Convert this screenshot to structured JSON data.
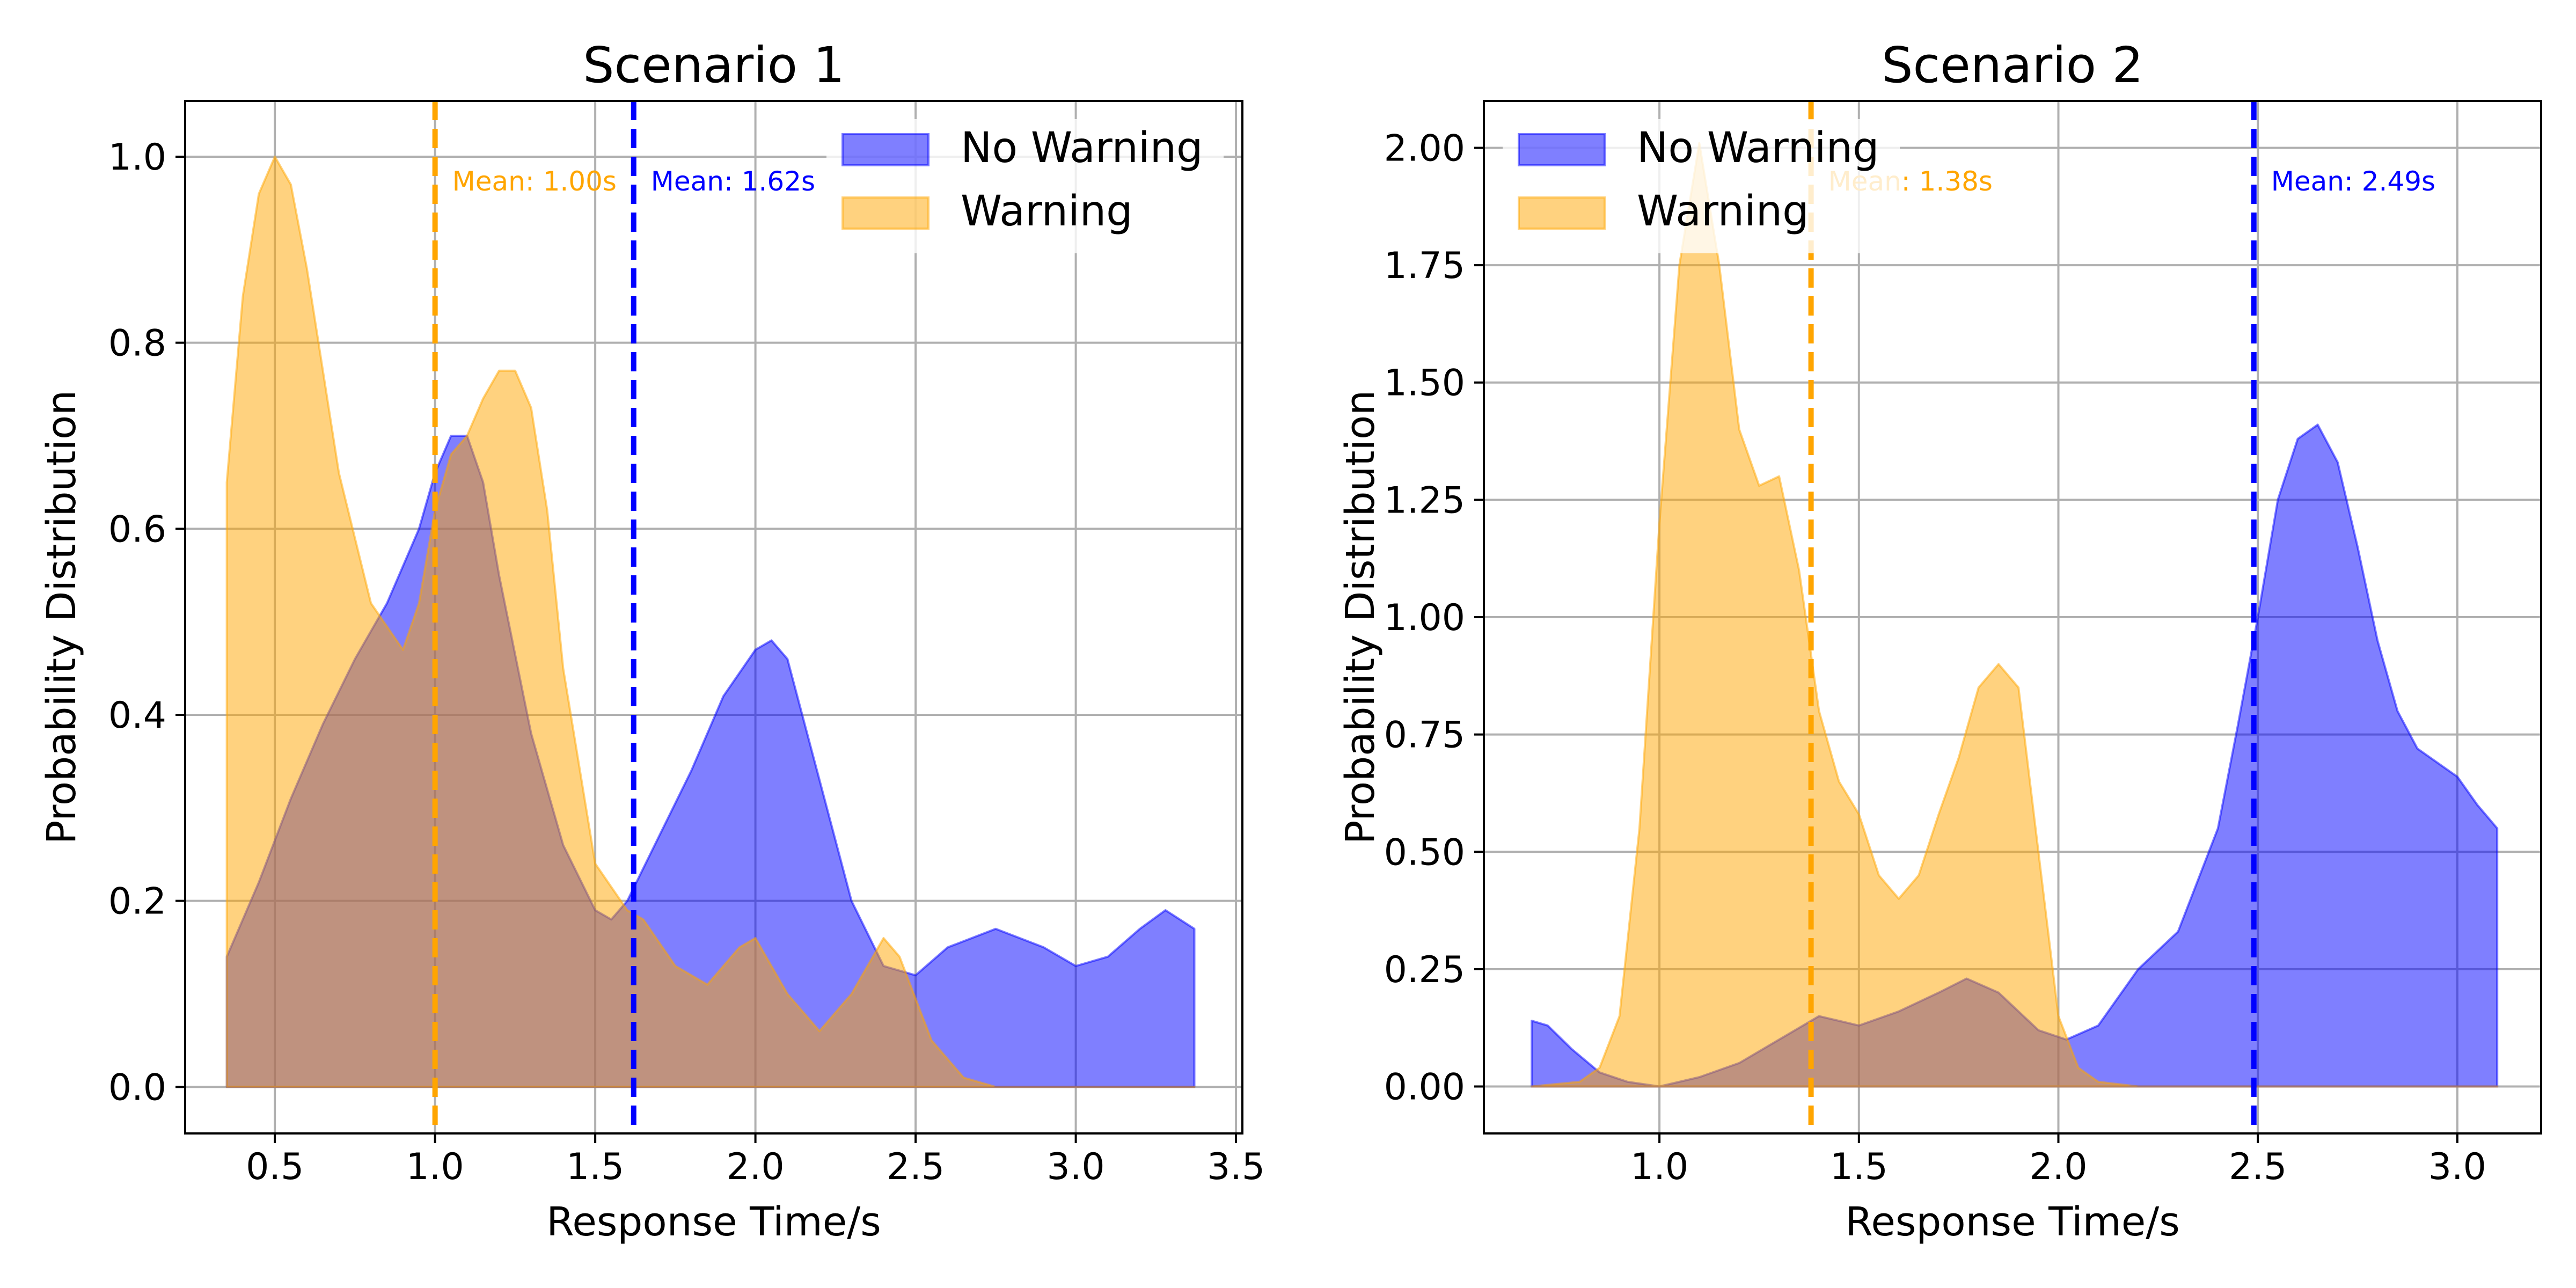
{
  "chart_data": [
    {
      "type": "area",
      "title": "Scenario 1",
      "xlabel": "Response Time/s",
      "ylabel": "Probability Distribution",
      "xlim": [
        0.22,
        3.52
      ],
      "ylim": [
        -0.05,
        1.06
      ],
      "xticks": [
        0.5,
        1.0,
        1.5,
        2.0,
        2.5,
        3.0,
        3.5
      ],
      "xtick_labels": [
        "0.5",
        "1.0",
        "1.5",
        "2.0",
        "2.5",
        "3.0",
        "3.5"
      ],
      "yticks": [
        0.0,
        0.2,
        0.4,
        0.6,
        0.8,
        1.0
      ],
      "ytick_labels": [
        "0.0",
        "0.2",
        "0.4",
        "0.6",
        "0.8",
        "1.0"
      ],
      "grid": true,
      "legend_position": "top-right",
      "series": [
        {
          "name": "No Warning",
          "color": "#0000ff",
          "x": [
            0.35,
            0.45,
            0.55,
            0.65,
            0.75,
            0.85,
            0.95,
            1.0,
            1.05,
            1.1,
            1.15,
            1.2,
            1.3,
            1.4,
            1.5,
            1.55,
            1.6,
            1.7,
            1.8,
            1.9,
            2.0,
            2.05,
            2.1,
            2.2,
            2.3,
            2.4,
            2.5,
            2.6,
            2.75,
            2.9,
            3.0,
            3.1,
            3.2,
            3.28,
            3.37
          ],
          "values": [
            0.14,
            0.22,
            0.31,
            0.39,
            0.46,
            0.52,
            0.6,
            0.66,
            0.7,
            0.7,
            0.65,
            0.55,
            0.38,
            0.26,
            0.19,
            0.18,
            0.2,
            0.27,
            0.34,
            0.42,
            0.47,
            0.48,
            0.46,
            0.33,
            0.2,
            0.13,
            0.12,
            0.15,
            0.17,
            0.15,
            0.13,
            0.14,
            0.17,
            0.19,
            0.17
          ]
        },
        {
          "name": "Warning",
          "color": "#ffa500",
          "x": [
            0.35,
            0.4,
            0.45,
            0.5,
            0.55,
            0.6,
            0.7,
            0.8,
            0.9,
            0.95,
            1.0,
            1.05,
            1.1,
            1.15,
            1.2,
            1.25,
            1.3,
            1.35,
            1.4,
            1.5,
            1.6,
            1.65,
            1.75,
            1.85,
            1.95,
            2.0,
            2.1,
            2.2,
            2.3,
            2.4,
            2.45,
            2.55,
            2.65,
            2.75,
            2.9,
            3.1,
            3.37
          ],
          "values": [
            0.65,
            0.85,
            0.96,
            1.0,
            0.97,
            0.88,
            0.66,
            0.52,
            0.47,
            0.52,
            0.62,
            0.68,
            0.7,
            0.74,
            0.77,
            0.77,
            0.73,
            0.62,
            0.45,
            0.24,
            0.19,
            0.18,
            0.13,
            0.11,
            0.15,
            0.16,
            0.1,
            0.06,
            0.1,
            0.16,
            0.14,
            0.05,
            0.01,
            0.0,
            0.0,
            0.0,
            0.0
          ]
        }
      ],
      "mean_lines": [
        {
          "series": "Warning",
          "value": 1.0,
          "label": "Mean: 1.00s",
          "color": "#ffa500"
        },
        {
          "series": "No Warning",
          "value": 1.62,
          "label": "Mean: 1.62s",
          "color": "#0000ff"
        }
      ]
    },
    {
      "type": "area",
      "title": "Scenario 2",
      "xlabel": "Response Time/s",
      "ylabel": "Probability Distribution",
      "xlim": [
        0.56,
        3.21
      ],
      "ylim": [
        -0.1,
        2.1
      ],
      "xticks": [
        1.0,
        1.5,
        2.0,
        2.5,
        3.0
      ],
      "xtick_labels": [
        "1.0",
        "1.5",
        "2.0",
        "2.5",
        "3.0"
      ],
      "yticks": [
        0.0,
        0.25,
        0.5,
        0.75,
        1.0,
        1.25,
        1.5,
        1.75,
        2.0
      ],
      "ytick_labels": [
        "0.00",
        "0.25",
        "0.50",
        "0.75",
        "1.00",
        "1.25",
        "1.50",
        "1.75",
        "2.00"
      ],
      "grid": true,
      "legend_position": "top-left",
      "series": [
        {
          "name": "No Warning",
          "color": "#0000ff",
          "x": [
            0.68,
            0.72,
            0.78,
            0.85,
            0.92,
            1.0,
            1.1,
            1.2,
            1.3,
            1.4,
            1.5,
            1.6,
            1.7,
            1.77,
            1.85,
            1.95,
            2.02,
            2.1,
            2.2,
            2.3,
            2.4,
            2.45,
            2.5,
            2.55,
            2.6,
            2.65,
            2.7,
            2.75,
            2.8,
            2.85,
            2.9,
            3.0,
            3.05,
            3.1
          ],
          "values": [
            0.14,
            0.13,
            0.08,
            0.03,
            0.01,
            0.0,
            0.02,
            0.05,
            0.1,
            0.15,
            0.13,
            0.16,
            0.2,
            0.23,
            0.2,
            0.12,
            0.1,
            0.13,
            0.25,
            0.33,
            0.55,
            0.77,
            1.0,
            1.25,
            1.38,
            1.41,
            1.33,
            1.15,
            0.95,
            0.8,
            0.72,
            0.66,
            0.6,
            0.55
          ]
        },
        {
          "name": "Warning",
          "color": "#ffa500",
          "x": [
            0.68,
            0.8,
            0.85,
            0.9,
            0.95,
            1.0,
            1.05,
            1.1,
            1.15,
            1.2,
            1.25,
            1.3,
            1.35,
            1.4,
            1.45,
            1.5,
            1.55,
            1.6,
            1.65,
            1.7,
            1.75,
            1.8,
            1.85,
            1.9,
            1.95,
            2.0,
            2.05,
            2.1,
            2.2,
            2.4,
            2.7,
            3.1
          ],
          "values": [
            0.0,
            0.01,
            0.04,
            0.15,
            0.55,
            1.2,
            1.75,
            2.01,
            1.75,
            1.4,
            1.28,
            1.3,
            1.1,
            0.8,
            0.65,
            0.58,
            0.45,
            0.4,
            0.45,
            0.58,
            0.7,
            0.85,
            0.9,
            0.85,
            0.5,
            0.15,
            0.04,
            0.01,
            0.0,
            0.0,
            0.0,
            0.0
          ]
        }
      ],
      "mean_lines": [
        {
          "series": "Warning",
          "value": 1.38,
          "label": "Mean: 1.38s",
          "color": "#ffa500"
        },
        {
          "series": "No Warning",
          "value": 2.49,
          "label": "Mean: 2.49s",
          "color": "#0000ff"
        }
      ]
    }
  ]
}
